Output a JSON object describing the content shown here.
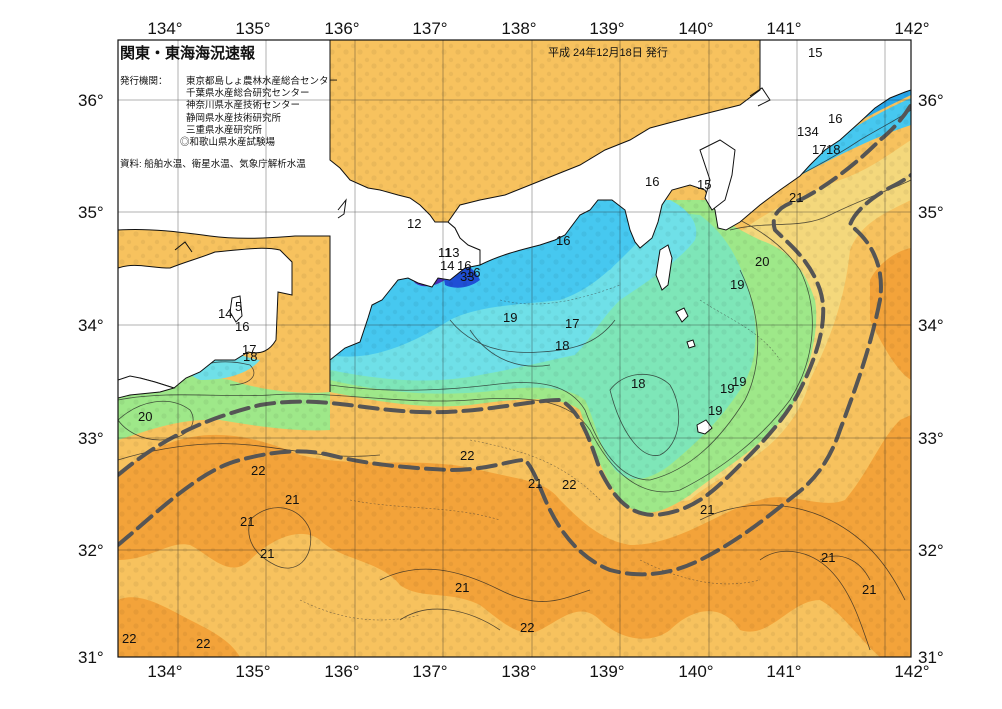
{
  "title": "関東・東海海況速報",
  "issue_date": "平成 24年12月18日 発行",
  "agency_label": "発行機関：",
  "agencies": [
    "東京都島しょ農林水産総合センター",
    "千葉県水産総合研究センター",
    "神奈川県水産技術センター",
    "静岡県水産技術研究所",
    "三重県水産研究所",
    "◎和歌山県水産試験場"
  ],
  "source": "資料: 船舶水温、衛星水温、気象庁解析水温",
  "axes": {
    "lon_labels": [
      "134°",
      "135°",
      "136°",
      "137°",
      "138°",
      "139°",
      "140°",
      "141°",
      "142°"
    ],
    "lat_labels": [
      "36°",
      "35°",
      "34°",
      "33°",
      "32°",
      "31°"
    ]
  },
  "isotherm_labels": [
    "15",
    "16",
    "134",
    "17",
    "18",
    "16",
    "15",
    "16",
    "21",
    "12",
    "11",
    "13",
    "14",
    "16",
    "16",
    "20",
    "19",
    "5",
    "14",
    "16",
    "17",
    "18",
    "19",
    "17",
    "18",
    "19",
    "18",
    "19",
    "20",
    "19",
    "33",
    "22",
    "22",
    "21",
    "22",
    "21",
    "21",
    "21",
    "21",
    "22",
    "21",
    "21",
    "21",
    "22",
    "22"
  ],
  "colors": {
    "land": "#ffffff",
    "sst_12": "#4a2fb8",
    "sst_13": "#1f4fd6",
    "sst_14": "#1e7fe0",
    "sst_15": "#28a8ec",
    "sst_16": "#46c8f0",
    "sst_17": "#6fe0e8",
    "sst_18": "#7ee6b8",
    "sst_19": "#9ee889",
    "sst_20": "#f4d87c",
    "sst_21": "#f7c25e",
    "sst_22": "#f3a33a",
    "kuroshio_axis": "#555555"
  }
}
